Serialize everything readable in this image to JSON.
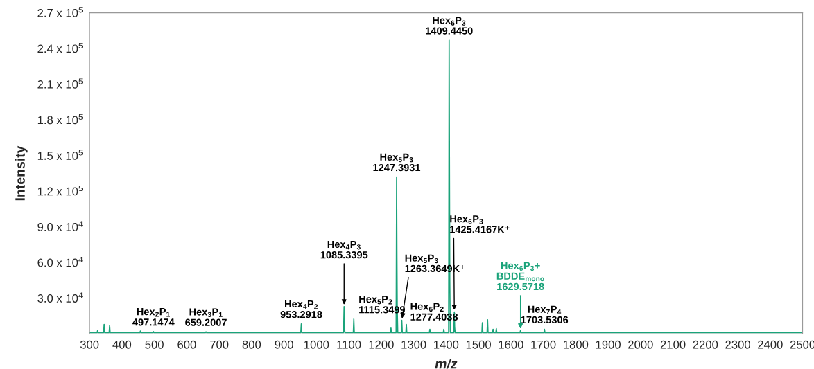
{
  "chart_data": {
    "type": "line",
    "xlabel": "m/z",
    "ylabel": "Intensity",
    "x": [
      300,
      323.5,
      325,
      326.5,
      343.5,
      345,
      346.5,
      360.5,
      362,
      363.5,
      455.5,
      457,
      458.5,
      495.6,
      497.1474,
      498.6,
      657.7,
      659.2007,
      660.7,
      951.8,
      953.2918,
      954.8,
      1083.8,
      1085.3395,
      1086.34,
      1087.8,
      1113.8,
      1115.3499,
      1116.8,
      1228.5,
      1230,
      1231.5,
      1245.9,
      1247.3931,
      1248.39,
      1249.39,
      1250.9,
      1261.9,
      1263.3649,
      1264.9,
      1275.9,
      1277.4038,
      1278.9,
      1348.5,
      1350,
      1351.5,
      1391.5,
      1393,
      1394.5,
      1407.9,
      1409.445,
      1410.45,
      1411.45,
      1412.9,
      1423.9,
      1425.4167,
      1426.4,
      1427.9,
      1510.5,
      1512,
      1513.5,
      1526.5,
      1528,
      1529.5,
      1543.5,
      1545,
      1546.5,
      1553.5,
      1555,
      1556.5,
      1628.1,
      1629.5718,
      1631.1,
      1702,
      1703.5306,
      1705,
      2500
    ],
    "series": [
      {
        "color": "#1aa37a",
        "values": [
          1200,
          1200,
          3000,
          1200,
          1200,
          8000,
          1200,
          1200,
          7000,
          1200,
          1200,
          2500,
          1200,
          1200,
          2000,
          1200,
          1200,
          1800,
          1200,
          1200,
          8500,
          1200,
          1200,
          23000,
          7000,
          1200,
          1200,
          12500,
          1200,
          1200,
          5000,
          1200,
          1200,
          132000,
          66000,
          20000,
          1200,
          1200,
          11500,
          1200,
          1200,
          8000,
          1200,
          1200,
          4000,
          1200,
          1200,
          4000,
          1200,
          1200,
          247000,
          142000,
          45000,
          1200,
          1200,
          18500,
          6000,
          1200,
          1200,
          9500,
          1200,
          1200,
          12000,
          1200,
          1200,
          4000,
          1200,
          1200,
          4500,
          1200,
          1200,
          2800,
          1200,
          1200,
          4000,
          1200,
          1200
        ]
      }
    ],
    "xlim": [
      300,
      2500
    ],
    "xticks": [
      300,
      400,
      500,
      600,
      700,
      800,
      900,
      1000,
      1100,
      1200,
      1300,
      1400,
      1500,
      1600,
      1700,
      1800,
      1900,
      2000,
      2100,
      2200,
      2300,
      2400,
      2500
    ],
    "ylim": [
      0,
      270000
    ],
    "yticks": [
      {
        "value": 30000,
        "label": "3.0 x 10$^{4}$"
      },
      {
        "value": 60000,
        "label": "6.0 x 10$^{4}$"
      },
      {
        "value": 90000,
        "label": "9.0 x 10$^{4}$"
      },
      {
        "value": 120000,
        "label": "1.2 x 10$^{5}$"
      },
      {
        "value": 150000,
        "label": "1.5 x 10$^{5}$"
      },
      {
        "value": 180000,
        "label": "1.8 x 10$^{5}$"
      },
      {
        "value": 210000,
        "label": "2.1 x 10$^{5}$"
      },
      {
        "value": 240000,
        "label": "2.4 x 10$^{5}$"
      },
      {
        "value": 270000,
        "label": "2.7 x 10$^{5}$"
      }
    ],
    "grid": false,
    "legend": false,
    "marker": "none",
    "line_style": "solid",
    "annotations": [
      {
        "text": "Hex$_{2}$P$_{1}$\n497.1474",
        "x": 497.1474,
        "y": 2000
      },
      {
        "text": "Hex$_{3}$P$_{1}$\n659.2007",
        "x": 659.2007,
        "y": 1800
      },
      {
        "text": "Hex$_{4}$P$_{2}$\n953.2918",
        "x": 953.2918,
        "y": 8500
      },
      {
        "text": "Hex$_{4}$P$_{3}$\n1085.3395",
        "x": 1085.3395,
        "y": 23000
      },
      {
        "text": "Hex$_{5}$P$_{2}$\n1115.3499",
        "x": 1115.3499,
        "y": 12500
      },
      {
        "text": "Hex$_{5}$P$_{3}$\n1247.3931",
        "x": 1247.3931,
        "y": 132000
      },
      {
        "text": "Hex$_{5}$P$_{3}$\n1263.3649K⁺",
        "x": 1263.3649,
        "y": 11500
      },
      {
        "text": "Hex$_{6}$P$_{2}$\n1277.4038",
        "x": 1277.4038,
        "y": 8000
      },
      {
        "text": "Hex$_{6}$P$_{3}$\n1409.4450",
        "x": 1409.445,
        "y": 247000
      },
      {
        "text": "Hex$_{6}$P$_{3}$\n1425.4167K⁺",
        "x": 1425.4167,
        "y": 18500
      },
      {
        "text": "Hex$_{6}$P$_{3}$+\nBDDE$_{mono}$\n1629.5718",
        "x": 1629.5718,
        "y": 2800
      },
      {
        "text": "Hex$_{7}$P$_{4}$\n1703.5306",
        "x": 1703.5306,
        "y": 4000
      }
    ]
  }
}
